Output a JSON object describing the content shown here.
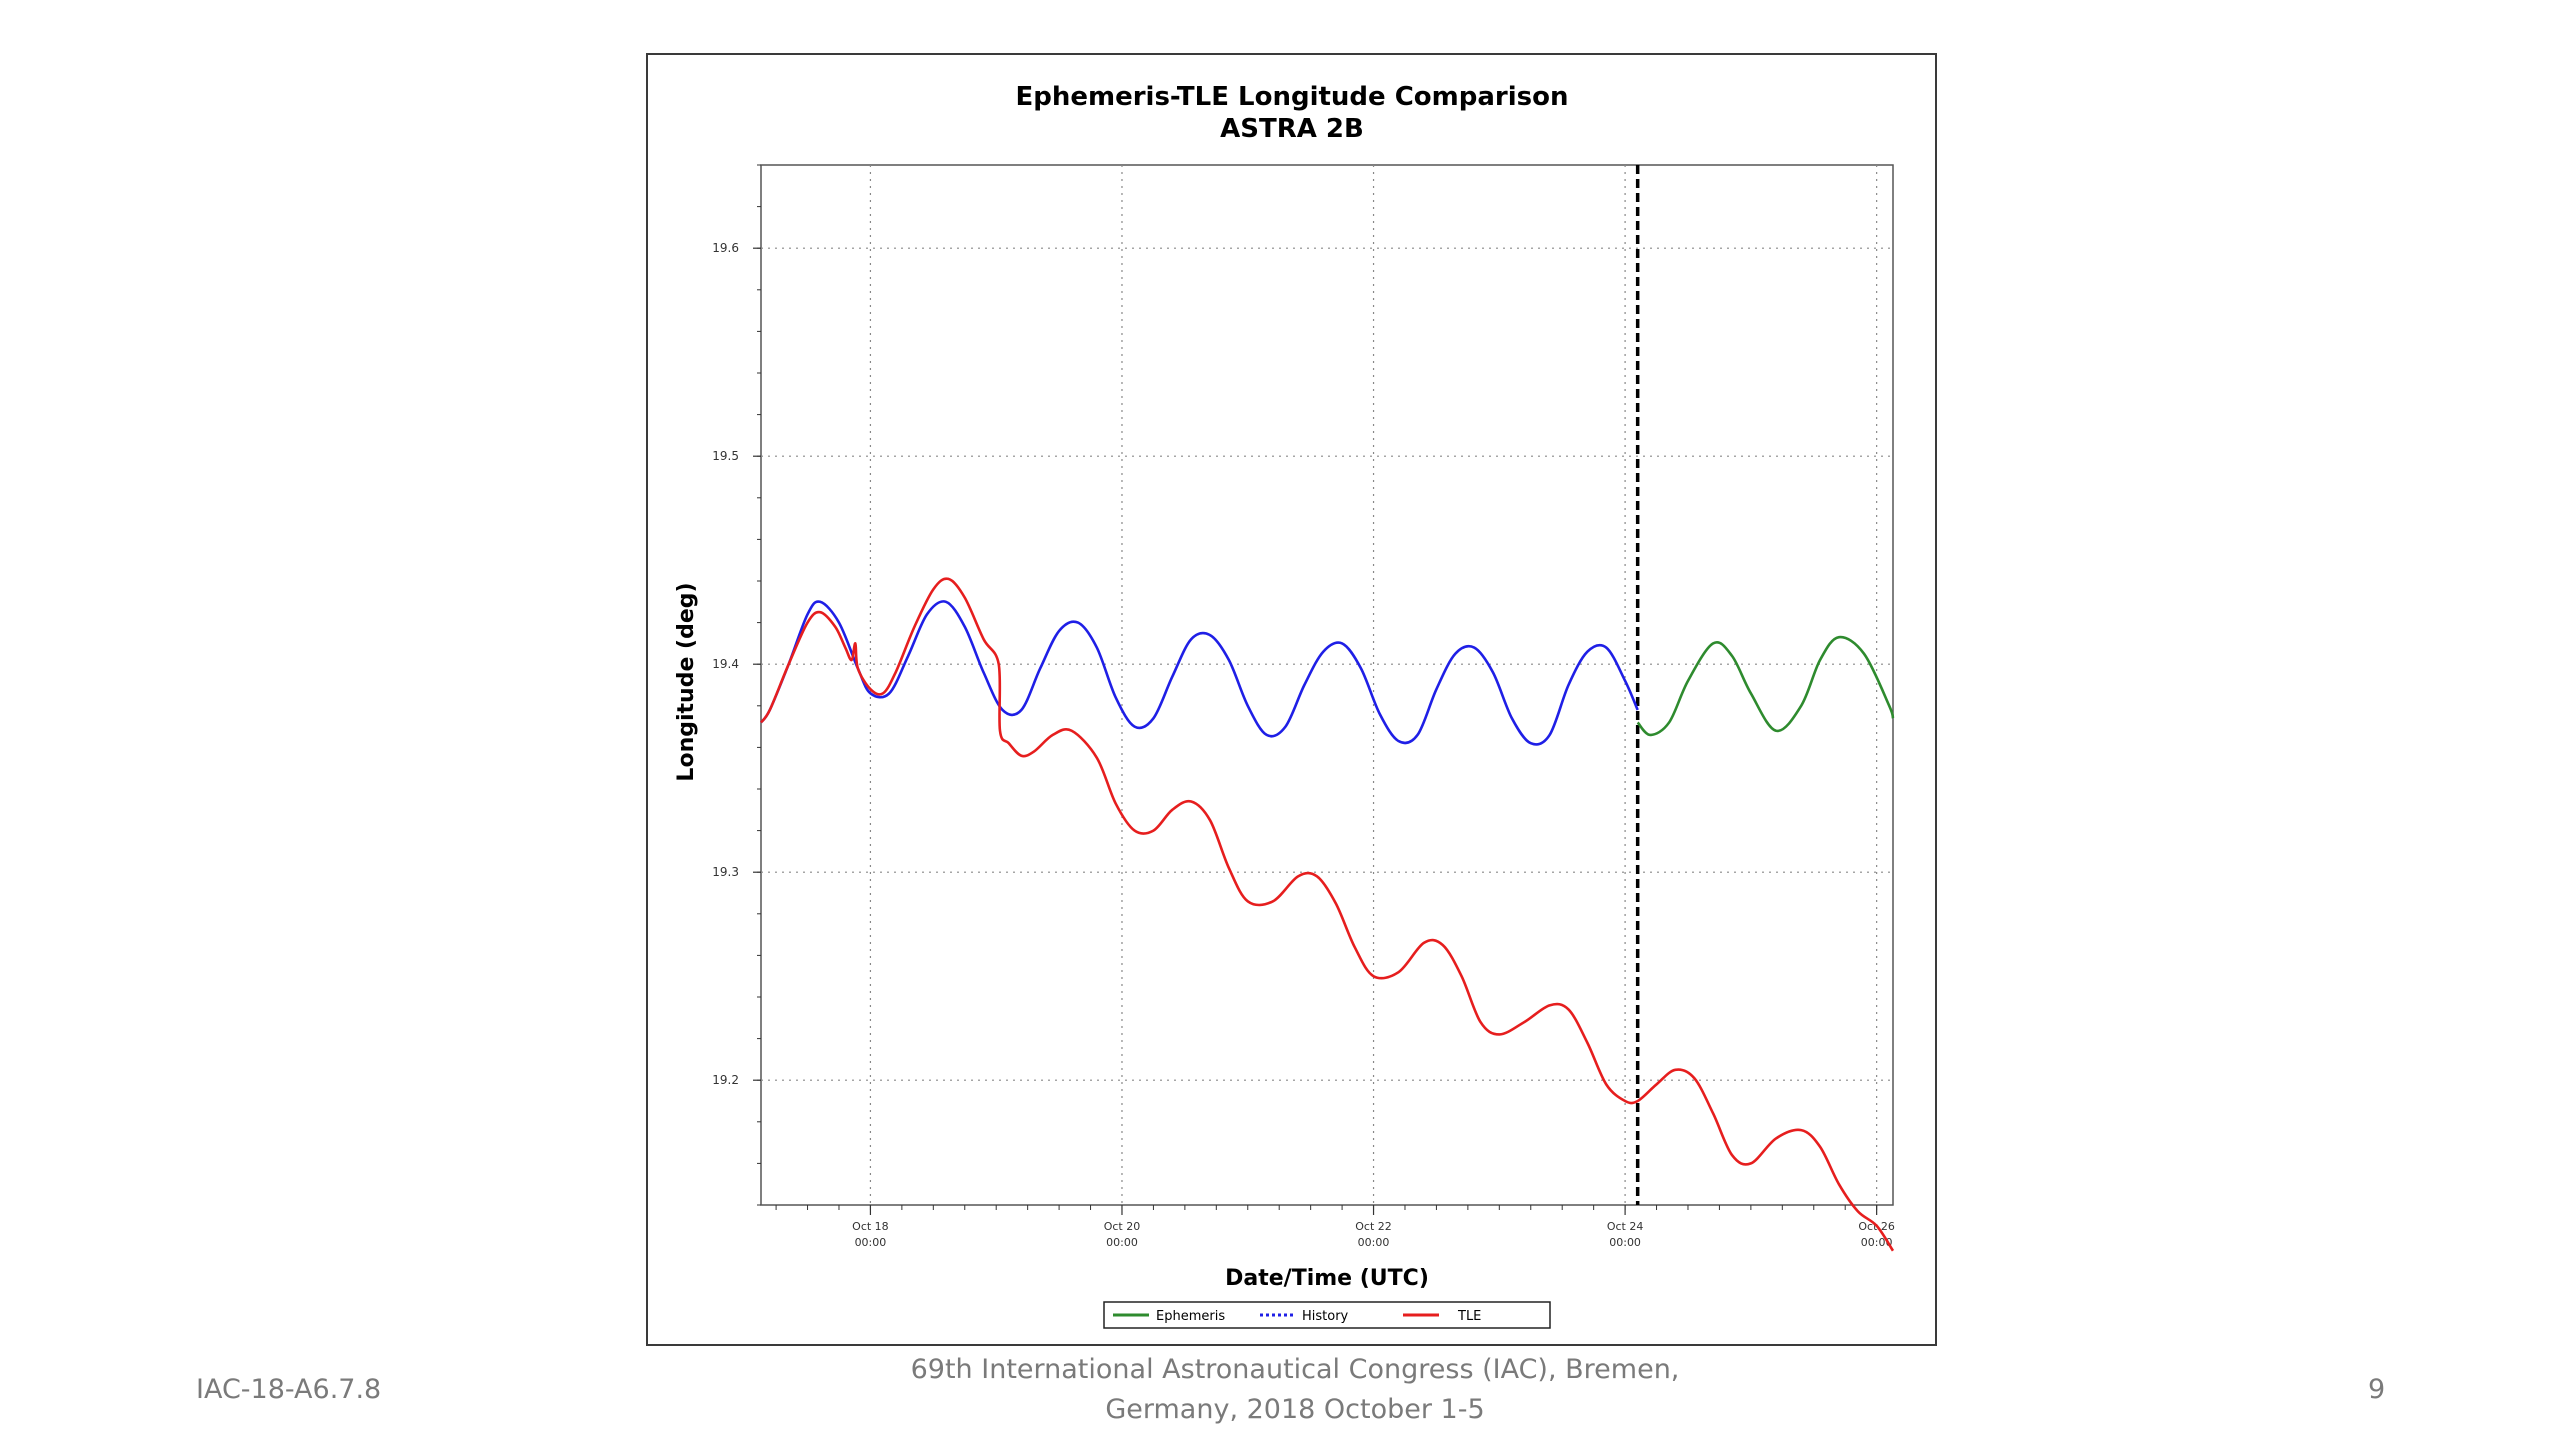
{
  "footer": {
    "left": "IAC-18-A6.7.8",
    "center_line1": "69th International Astronautical Congress (IAC), Bremen,",
    "center_line2": "Germany, 2018 October 1-5",
    "page_number": "9"
  },
  "chart_data": {
    "type": "line",
    "title": "Ephemeris-TLE Longitude Comparison",
    "subtitle": "ASTRA 2B",
    "xlabel": "Date/Time (UTC)",
    "ylabel": "Longitude (deg)",
    "x_unit": "days (2018-10-17 00:00 UTC = 17.0)",
    "xlim": [
      17.13,
      26.13
    ],
    "ylim": [
      19.14,
      19.64
    ],
    "grid": true,
    "legend_position": "bottom",
    "x_ticks": [
      {
        "value": 18,
        "label_line1": "Oct 18",
        "label_line2": "00:00"
      },
      {
        "value": 20,
        "label_line1": "Oct 20",
        "label_line2": "00:00"
      },
      {
        "value": 22,
        "label_line1": "Oct 22",
        "label_line2": "00:00"
      },
      {
        "value": 24,
        "label_line1": "Oct 24",
        "label_line2": "00:00"
      },
      {
        "value": 26,
        "label_line1": "Oct 26",
        "label_line2": "00:00"
      }
    ],
    "y_ticks": [
      {
        "value": 19.2,
        "label": "19.2"
      },
      {
        "value": 19.3,
        "label": "19.3"
      },
      {
        "value": 19.4,
        "label": "19.4"
      },
      {
        "value": 19.5,
        "label": "19.5"
      },
      {
        "value": 19.6,
        "label": "19.6"
      }
    ],
    "vertical_marker": {
      "x": 24.1,
      "style": "dashed",
      "color": "#000000"
    },
    "series": [
      {
        "name": "Ephemeris",
        "color": "#2e8b2e",
        "style": "solid",
        "x": [
          24.1,
          24.2,
          24.35,
          24.5,
          24.7,
          24.85,
          25.0,
          25.2,
          25.4,
          25.55,
          25.7,
          25.9,
          26.1,
          26.13
        ],
        "y": [
          19.372,
          19.366,
          19.372,
          19.392,
          19.41,
          19.404,
          19.386,
          19.368,
          19.38,
          19.402,
          19.413,
          19.405,
          19.38,
          19.374
        ]
      },
      {
        "name": "History",
        "color": "#1f1fe6",
        "style": "solid",
        "x": [
          17.13,
          17.2,
          17.35,
          17.5,
          17.6,
          17.75,
          17.9,
          18.0,
          18.15,
          18.3,
          18.45,
          18.6,
          18.75,
          18.9,
          19.05,
          19.2,
          19.35,
          19.5,
          19.65,
          19.8,
          19.95,
          20.1,
          20.25,
          20.4,
          20.55,
          20.7,
          20.85,
          21.0,
          21.15,
          21.3,
          21.45,
          21.6,
          21.75,
          21.9,
          22.05,
          22.2,
          22.35,
          22.5,
          22.65,
          22.8,
          22.95,
          23.1,
          23.25,
          23.4,
          23.55,
          23.7,
          23.85,
          24.0,
          24.1
        ],
        "y": [
          19.372,
          19.378,
          19.4,
          19.424,
          19.43,
          19.42,
          19.398,
          19.386,
          19.386,
          19.404,
          19.424,
          19.43,
          19.418,
          19.396,
          19.378,
          19.378,
          19.398,
          19.416,
          19.42,
          19.408,
          19.384,
          19.37,
          19.374,
          19.394,
          19.412,
          19.414,
          19.402,
          19.38,
          19.366,
          19.37,
          19.39,
          19.406,
          19.41,
          19.398,
          19.376,
          19.363,
          19.366,
          19.388,
          19.405,
          19.408,
          19.396,
          19.374,
          19.362,
          19.366,
          19.39,
          19.406,
          19.408,
          19.392,
          19.378
        ]
      },
      {
        "name": "TLE",
        "color": "#e61e1e",
        "style": "solid",
        "x": [
          17.13,
          17.2,
          17.35,
          17.5,
          17.6,
          17.72,
          17.8,
          17.85,
          17.88,
          17.9,
          18.0,
          18.1,
          18.2,
          18.35,
          18.5,
          18.62,
          18.75,
          18.9,
          19.02,
          19.03,
          19.1,
          19.2,
          19.3,
          19.45,
          19.6,
          19.8,
          19.95,
          20.1,
          20.25,
          20.4,
          20.55,
          20.7,
          20.85,
          21.0,
          21.2,
          21.4,
          21.55,
          21.7,
          21.85,
          22.0,
          22.2,
          22.4,
          22.55,
          22.7,
          22.85,
          23.0,
          23.2,
          23.4,
          23.55,
          23.7,
          23.85,
          24.0,
          24.1,
          24.25,
          24.4,
          24.55,
          24.7,
          24.85,
          25.0,
          25.2,
          25.4,
          25.55,
          25.7,
          25.85,
          26.0,
          26.13
        ],
        "y": [
          19.372,
          19.378,
          19.4,
          19.42,
          19.425,
          19.418,
          19.408,
          19.402,
          19.41,
          19.398,
          19.388,
          19.386,
          19.396,
          19.418,
          19.436,
          19.441,
          19.432,
          19.412,
          19.4,
          19.368,
          19.362,
          19.356,
          19.358,
          19.366,
          19.368,
          19.355,
          19.333,
          19.32,
          19.32,
          19.33,
          19.334,
          19.325,
          19.302,
          19.286,
          19.286,
          19.298,
          19.298,
          19.285,
          19.264,
          19.25,
          19.252,
          19.266,
          19.265,
          19.25,
          19.228,
          19.222,
          19.228,
          19.236,
          19.234,
          19.218,
          19.198,
          19.19,
          19.19,
          19.198,
          19.205,
          19.201,
          19.184,
          19.164,
          19.16,
          19.172,
          19.176,
          19.168,
          19.15,
          19.137,
          19.13,
          19.118
        ]
      }
    ]
  }
}
